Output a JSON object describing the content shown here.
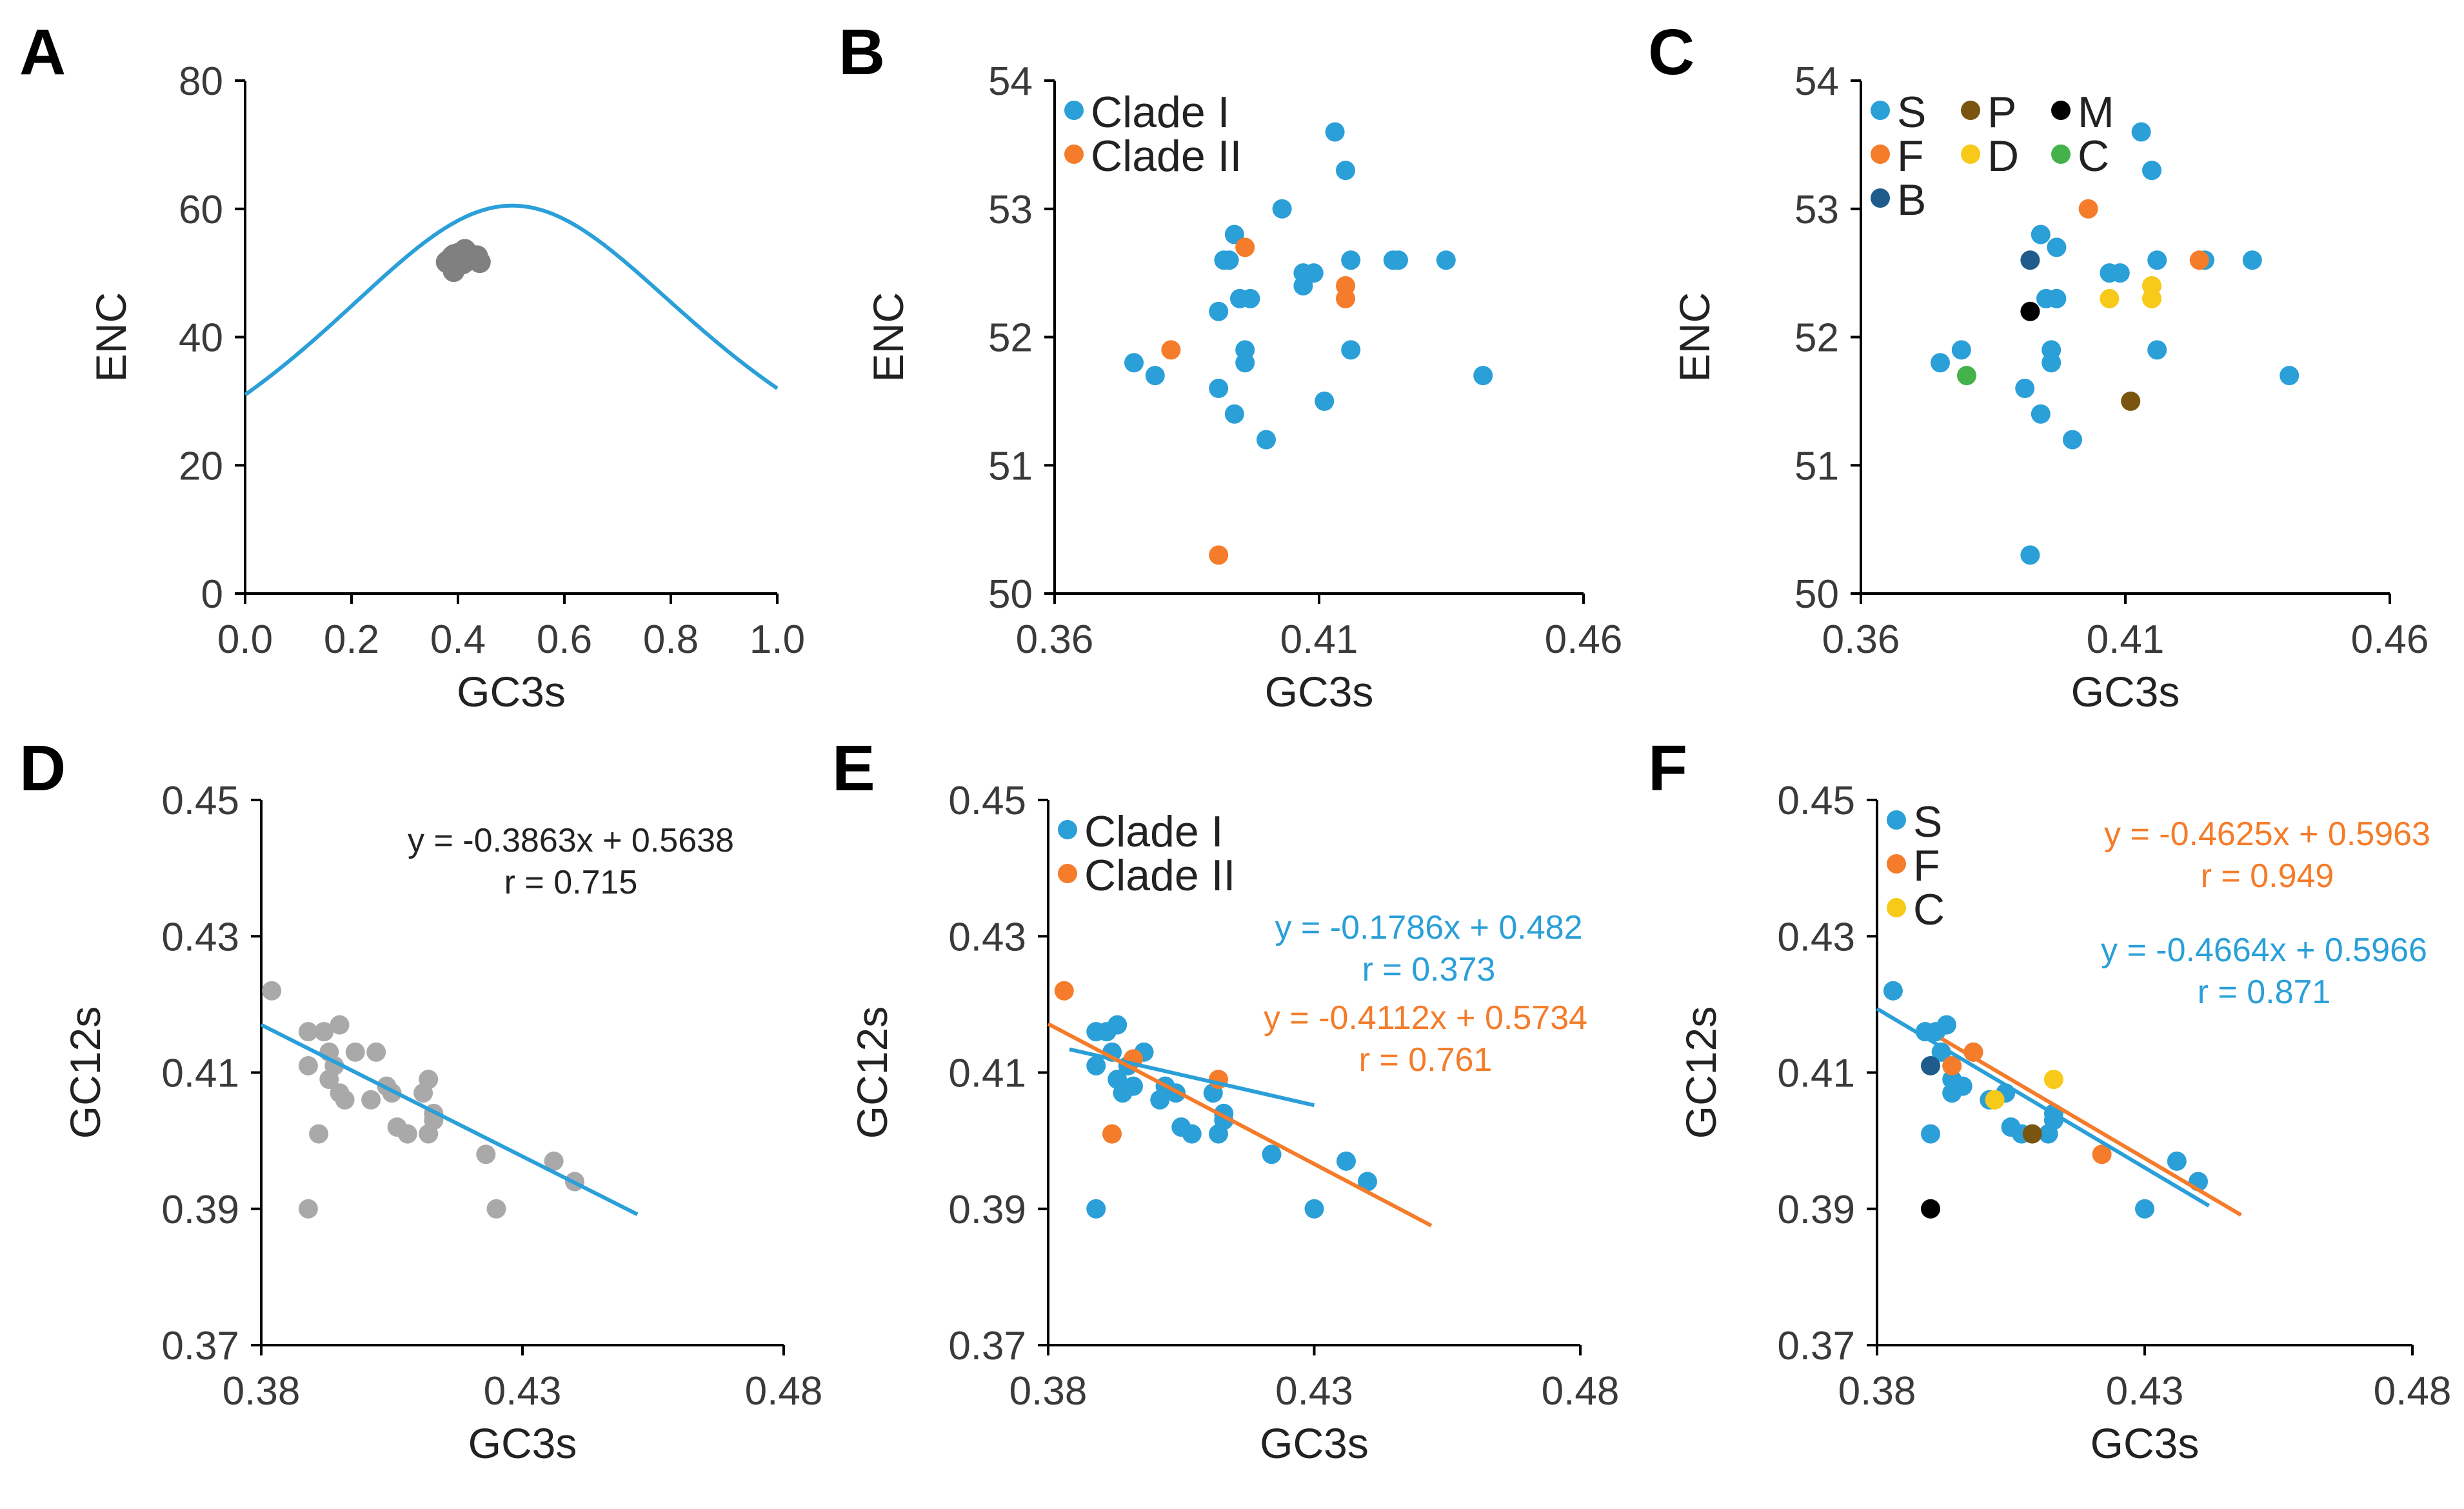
{
  "colors": {
    "clade_I": "#2a9fd8",
    "clade_II": "#f47c2a",
    "gray": "#808080",
    "light_gray": "#a9a9a9",
    "S": "#2a9fd8",
    "F": "#f47c2a",
    "B": "#1f5c8c",
    "P": "#7a5510",
    "D": "#f7c919",
    "M": "#000000",
    "C": "#44b14a",
    "C_panelF": "#f7c919",
    "axis": "#000000"
  },
  "chart_data": [
    {
      "panel": "A",
      "type": "scatter",
      "xlabel": "GC3s",
      "ylabel": "ENC",
      "xlim": [
        0,
        1
      ],
      "ylim": [
        0,
        80
      ],
      "xticks": [
        "0.0",
        "0.2",
        "0.4",
        "0.6",
        "0.8",
        "1.0"
      ],
      "yticks": [
        "0",
        "20",
        "40",
        "60",
        "80"
      ],
      "expected_curve": "ENC = 2 + s + 29/(s^2 + (1-s)^2)",
      "points": [
        {
          "x": 0.381,
          "y": 51.8
        },
        {
          "x": 0.379,
          "y": 51.7
        },
        {
          "x": 0.389,
          "y": 51.6
        },
        {
          "x": 0.389,
          "y": 52.2
        },
        {
          "x": 0.39,
          "y": 52.6
        },
        {
          "x": 0.392,
          "y": 51.4
        },
        {
          "x": 0.393,
          "y": 52.8
        },
        {
          "x": 0.394,
          "y": 52.3
        },
        {
          "x": 0.395,
          "y": 51.9
        },
        {
          "x": 0.395,
          "y": 51.8
        },
        {
          "x": 0.396,
          "y": 52.3
        },
        {
          "x": 0.398,
          "y": 51.2
        },
        {
          "x": 0.401,
          "y": 53.0
        },
        {
          "x": 0.405,
          "y": 52.5
        },
        {
          "x": 0.408,
          "y": 52.5
        },
        {
          "x": 0.409,
          "y": 51.5
        },
        {
          "x": 0.413,
          "y": 53.6
        },
        {
          "x": 0.416,
          "y": 53.3
        },
        {
          "x": 0.416,
          "y": 52.3
        },
        {
          "x": 0.416,
          "y": 51.9
        },
        {
          "x": 0.417,
          "y": 52.6
        },
        {
          "x": 0.425,
          "y": 52.6
        },
        {
          "x": 0.426,
          "y": 52.6
        },
        {
          "x": 0.436,
          "y": 52.6
        },
        {
          "x": 0.441,
          "y": 51.7
        },
        {
          "x": 0.395,
          "y": 52.7
        },
        {
          "x": 0.415,
          "y": 52.4
        },
        {
          "x": 0.392,
          "y": 50.3
        },
        {
          "x": 0.382,
          "y": 51.9
        }
      ]
    },
    {
      "panel": "B",
      "type": "scatter",
      "xlabel": "GC3s",
      "ylabel": "ENC",
      "xlim": [
        0.36,
        0.46
      ],
      "ylim": [
        50,
        54
      ],
      "xticks": [
        "0.36",
        "0.41",
        "0.46"
      ],
      "yticks": [
        "50",
        "51",
        "52",
        "53",
        "54"
      ],
      "legend": [
        "Clade I",
        "Clade II"
      ],
      "series": [
        {
          "name": "Clade I",
          "points": [
            {
              "x": 0.375,
              "y": 51.8
            },
            {
              "x": 0.379,
              "y": 51.7
            },
            {
              "x": 0.391,
              "y": 51.6
            },
            {
              "x": 0.391,
              "y": 52.2
            },
            {
              "x": 0.392,
              "y": 52.6
            },
            {
              "x": 0.394,
              "y": 51.4
            },
            {
              "x": 0.394,
              "y": 52.8
            },
            {
              "x": 0.395,
              "y": 52.3
            },
            {
              "x": 0.396,
              "y": 51.9
            },
            {
              "x": 0.396,
              "y": 51.8
            },
            {
              "x": 0.397,
              "y": 52.3
            },
            {
              "x": 0.4,
              "y": 51.2
            },
            {
              "x": 0.393,
              "y": 52.6
            },
            {
              "x": 0.403,
              "y": 53.0
            },
            {
              "x": 0.407,
              "y": 52.5
            },
            {
              "x": 0.407,
              "y": 52.4
            },
            {
              "x": 0.409,
              "y": 52.5
            },
            {
              "x": 0.411,
              "y": 51.5
            },
            {
              "x": 0.413,
              "y": 53.6
            },
            {
              "x": 0.415,
              "y": 53.3
            },
            {
              "x": 0.416,
              "y": 51.9
            },
            {
              "x": 0.416,
              "y": 52.6
            },
            {
              "x": 0.424,
              "y": 52.6
            },
            {
              "x": 0.425,
              "y": 52.6
            },
            {
              "x": 0.434,
              "y": 52.6
            },
            {
              "x": 0.441,
              "y": 51.7
            }
          ]
        },
        {
          "name": "Clade II",
          "points": [
            {
              "x": 0.382,
              "y": 51.9
            },
            {
              "x": 0.396,
              "y": 52.7
            },
            {
              "x": 0.415,
              "y": 52.4
            },
            {
              "x": 0.415,
              "y": 52.3
            },
            {
              "x": 0.391,
              "y": 50.3
            }
          ]
        }
      ]
    },
    {
      "panel": "C",
      "type": "scatter",
      "xlabel": "GC3s",
      "ylabel": "ENC",
      "xlim": [
        0.36,
        0.46
      ],
      "ylim": [
        50,
        54
      ],
      "xticks": [
        "0.36",
        "0.41",
        "0.46"
      ],
      "yticks": [
        "50",
        "51",
        "52",
        "53",
        "54"
      ],
      "legend": [
        "S",
        "P",
        "M",
        "F",
        "D",
        "C",
        "B"
      ],
      "series": [
        {
          "name": "S",
          "points": [
            {
              "x": 0.375,
              "y": 51.8
            },
            {
              "x": 0.379,
              "y": 51.9
            },
            {
              "x": 0.391,
              "y": 51.6
            },
            {
              "x": 0.394,
              "y": 51.4
            },
            {
              "x": 0.394,
              "y": 52.8
            },
            {
              "x": 0.395,
              "y": 52.3
            },
            {
              "x": 0.396,
              "y": 51.9
            },
            {
              "x": 0.396,
              "y": 51.8
            },
            {
              "x": 0.397,
              "y": 52.3
            },
            {
              "x": 0.397,
              "y": 52.7
            },
            {
              "x": 0.4,
              "y": 51.2
            },
            {
              "x": 0.407,
              "y": 52.5
            },
            {
              "x": 0.409,
              "y": 52.5
            },
            {
              "x": 0.413,
              "y": 53.6
            },
            {
              "x": 0.415,
              "y": 53.3
            },
            {
              "x": 0.416,
              "y": 51.9
            },
            {
              "x": 0.416,
              "y": 52.6
            },
            {
              "x": 0.425,
              "y": 52.6
            },
            {
              "x": 0.434,
              "y": 52.6
            },
            {
              "x": 0.441,
              "y": 51.7
            },
            {
              "x": 0.392,
              "y": 50.3
            }
          ]
        },
        {
          "name": "F",
          "points": [
            {
              "x": 0.403,
              "y": 53.0
            },
            {
              "x": 0.424,
              "y": 52.6
            }
          ]
        },
        {
          "name": "B",
          "points": [
            {
              "x": 0.392,
              "y": 52.6
            }
          ]
        },
        {
          "name": "P",
          "points": [
            {
              "x": 0.411,
              "y": 51.5
            }
          ]
        },
        {
          "name": "D",
          "points": [
            {
              "x": 0.407,
              "y": 52.3
            },
            {
              "x": 0.415,
              "y": 52.4
            },
            {
              "x": 0.415,
              "y": 52.3
            }
          ]
        },
        {
          "name": "M",
          "points": [
            {
              "x": 0.392,
              "y": 52.2
            }
          ]
        },
        {
          "name": "C",
          "points": [
            {
              "x": 0.38,
              "y": 51.7
            }
          ]
        }
      ]
    },
    {
      "panel": "D",
      "type": "scatter",
      "xlabel": "GC3s",
      "ylabel": "GC12s",
      "xlim": [
        0.38,
        0.48
      ],
      "ylim": [
        0.37,
        0.45
      ],
      "xticks": [
        "0.38",
        "0.43",
        "0.48"
      ],
      "yticks": [
        "0.37",
        "0.39",
        "0.41",
        "0.43",
        "0.45"
      ],
      "equation": "y = -0.3863x + 0.5638",
      "r_text": "r = 0.715",
      "trendline": {
        "slope": -0.3863,
        "intercept": 0.5638,
        "x_range": [
          0.38,
          0.452
        ]
      },
      "points": [
        {
          "x": 0.382,
          "y": 0.422
        },
        {
          "x": 0.389,
          "y": 0.416
        },
        {
          "x": 0.389,
          "y": 0.411
        },
        {
          "x": 0.389,
          "y": 0.39
        },
        {
          "x": 0.391,
          "y": 0.401
        },
        {
          "x": 0.392,
          "y": 0.416
        },
        {
          "x": 0.393,
          "y": 0.413
        },
        {
          "x": 0.393,
          "y": 0.409
        },
        {
          "x": 0.394,
          "y": 0.411
        },
        {
          "x": 0.395,
          "y": 0.407
        },
        {
          "x": 0.395,
          "y": 0.417
        },
        {
          "x": 0.396,
          "y": 0.406
        },
        {
          "x": 0.398,
          "y": 0.413
        },
        {
          "x": 0.401,
          "y": 0.406
        },
        {
          "x": 0.402,
          "y": 0.413
        },
        {
          "x": 0.404,
          "y": 0.408
        },
        {
          "x": 0.405,
          "y": 0.407
        },
        {
          "x": 0.406,
          "y": 0.402
        },
        {
          "x": 0.408,
          "y": 0.401
        },
        {
          "x": 0.411,
          "y": 0.407
        },
        {
          "x": 0.412,
          "y": 0.409
        },
        {
          "x": 0.412,
          "y": 0.401
        },
        {
          "x": 0.413,
          "y": 0.404
        },
        {
          "x": 0.413,
          "y": 0.403
        },
        {
          "x": 0.423,
          "y": 0.398
        },
        {
          "x": 0.425,
          "y": 0.39
        },
        {
          "x": 0.436,
          "y": 0.397
        },
        {
          "x": 0.44,
          "y": 0.394
        }
      ]
    },
    {
      "panel": "E",
      "type": "scatter",
      "xlabel": "GC3s",
      "ylabel": "GC12s",
      "xlim": [
        0.38,
        0.48
      ],
      "ylim": [
        0.37,
        0.45
      ],
      "xticks": [
        "0.38",
        "0.43",
        "0.48"
      ],
      "yticks": [
        "0.37",
        "0.39",
        "0.41",
        "0.43",
        "0.45"
      ],
      "legend": [
        "Clade I",
        "Clade II"
      ],
      "equations": [
        {
          "series": "Clade I",
          "equation": "y = -0.1786x + 0.482",
          "r_text": "r = 0.373",
          "trendline": {
            "slope": -0.1786,
            "intercept": 0.482,
            "x_range": [
              0.384,
              0.43
            ]
          }
        },
        {
          "series": "Clade II",
          "equation": "y = -0.4112x + 0.5734",
          "r_text": "r = 0.761",
          "trendline": {
            "slope": -0.4112,
            "intercept": 0.5734,
            "x_range": [
              0.38,
              0.452
            ]
          }
        }
      ],
      "series": [
        {
          "name": "Clade I",
          "points": [
            {
              "x": 0.389,
              "y": 0.416
            },
            {
              "x": 0.389,
              "y": 0.411
            },
            {
              "x": 0.389,
              "y": 0.39
            },
            {
              "x": 0.391,
              "y": 0.416
            },
            {
              "x": 0.392,
              "y": 0.413
            },
            {
              "x": 0.393,
              "y": 0.409
            },
            {
              "x": 0.393,
              "y": 0.417
            },
            {
              "x": 0.394,
              "y": 0.407
            },
            {
              "x": 0.395,
              "y": 0.411
            },
            {
              "x": 0.396,
              "y": 0.408
            },
            {
              "x": 0.398,
              "y": 0.413
            },
            {
              "x": 0.401,
              "y": 0.406
            },
            {
              "x": 0.402,
              "y": 0.408
            },
            {
              "x": 0.404,
              "y": 0.407
            },
            {
              "x": 0.405,
              "y": 0.402
            },
            {
              "x": 0.407,
              "y": 0.401
            },
            {
              "x": 0.411,
              "y": 0.407
            },
            {
              "x": 0.413,
              "y": 0.404
            },
            {
              "x": 0.413,
              "y": 0.403
            },
            {
              "x": 0.412,
              "y": 0.401
            },
            {
              "x": 0.422,
              "y": 0.398
            },
            {
              "x": 0.43,
              "y": 0.39
            },
            {
              "x": 0.436,
              "y": 0.397
            },
            {
              "x": 0.44,
              "y": 0.394
            }
          ]
        },
        {
          "name": "Clade II",
          "points": [
            {
              "x": 0.383,
              "y": 0.422
            },
            {
              "x": 0.392,
              "y": 0.401
            },
            {
              "x": 0.396,
              "y": 0.412
            },
            {
              "x": 0.412,
              "y": 0.409
            }
          ]
        }
      ]
    },
    {
      "panel": "F",
      "type": "scatter",
      "xlabel": "GC3s",
      "ylabel": "GC12s",
      "xlim": [
        0.38,
        0.48
      ],
      "ylim": [
        0.37,
        0.45
      ],
      "xticks": [
        "0.38",
        "0.43",
        "0.48"
      ],
      "yticks": [
        "0.37",
        "0.39",
        "0.41",
        "0.43",
        "0.45"
      ],
      "legend": [
        "S",
        "F",
        "C"
      ],
      "equations": [
        {
          "series": "F",
          "equation": "y = -0.4625x + 0.5963",
          "r_text": "r = 0.949",
          "trendline": {
            "slope": -0.4625,
            "intercept": 0.5963,
            "x_range": [
              0.392,
              0.448
            ]
          }
        },
        {
          "series": "S",
          "equation": "y = -0.4664x + 0.5966",
          "r_text": "r = 0.871",
          "trendline": {
            "slope": -0.4664,
            "intercept": 0.5966,
            "x_range": [
              0.38,
              0.442
            ]
          }
        }
      ],
      "series": [
        {
          "name": "S",
          "points": [
            {
              "x": 0.383,
              "y": 0.422
            },
            {
              "x": 0.389,
              "y": 0.416
            },
            {
              "x": 0.39,
              "y": 0.401
            },
            {
              "x": 0.391,
              "y": 0.416
            },
            {
              "x": 0.392,
              "y": 0.413
            },
            {
              "x": 0.393,
              "y": 0.417
            },
            {
              "x": 0.394,
              "y": 0.409
            },
            {
              "x": 0.394,
              "y": 0.407
            },
            {
              "x": 0.396,
              "y": 0.408
            },
            {
              "x": 0.398,
              "y": 0.413
            },
            {
              "x": 0.401,
              "y": 0.406
            },
            {
              "x": 0.404,
              "y": 0.407
            },
            {
              "x": 0.405,
              "y": 0.402
            },
            {
              "x": 0.407,
              "y": 0.401
            },
            {
              "x": 0.413,
              "y": 0.404
            },
            {
              "x": 0.413,
              "y": 0.403
            },
            {
              "x": 0.412,
              "y": 0.401
            },
            {
              "x": 0.43,
              "y": 0.39
            },
            {
              "x": 0.436,
              "y": 0.397
            },
            {
              "x": 0.44,
              "y": 0.394
            }
          ]
        },
        {
          "name": "F",
          "points": [
            {
              "x": 0.394,
              "y": 0.411
            },
            {
              "x": 0.398,
              "y": 0.413
            },
            {
              "x": 0.422,
              "y": 0.398
            }
          ]
        },
        {
          "name": "C",
          "points": [
            {
              "x": 0.402,
              "y": 0.406
            },
            {
              "x": 0.413,
              "y": 0.409
            }
          ]
        },
        {
          "name": "B",
          "points": [
            {
              "x": 0.39,
              "y": 0.411
            }
          ]
        },
        {
          "name": "P",
          "points": [
            {
              "x": 0.409,
              "y": 0.401
            }
          ]
        },
        {
          "name": "M",
          "points": [
            {
              "x": 0.39,
              "y": 0.39
            }
          ]
        }
      ]
    }
  ]
}
